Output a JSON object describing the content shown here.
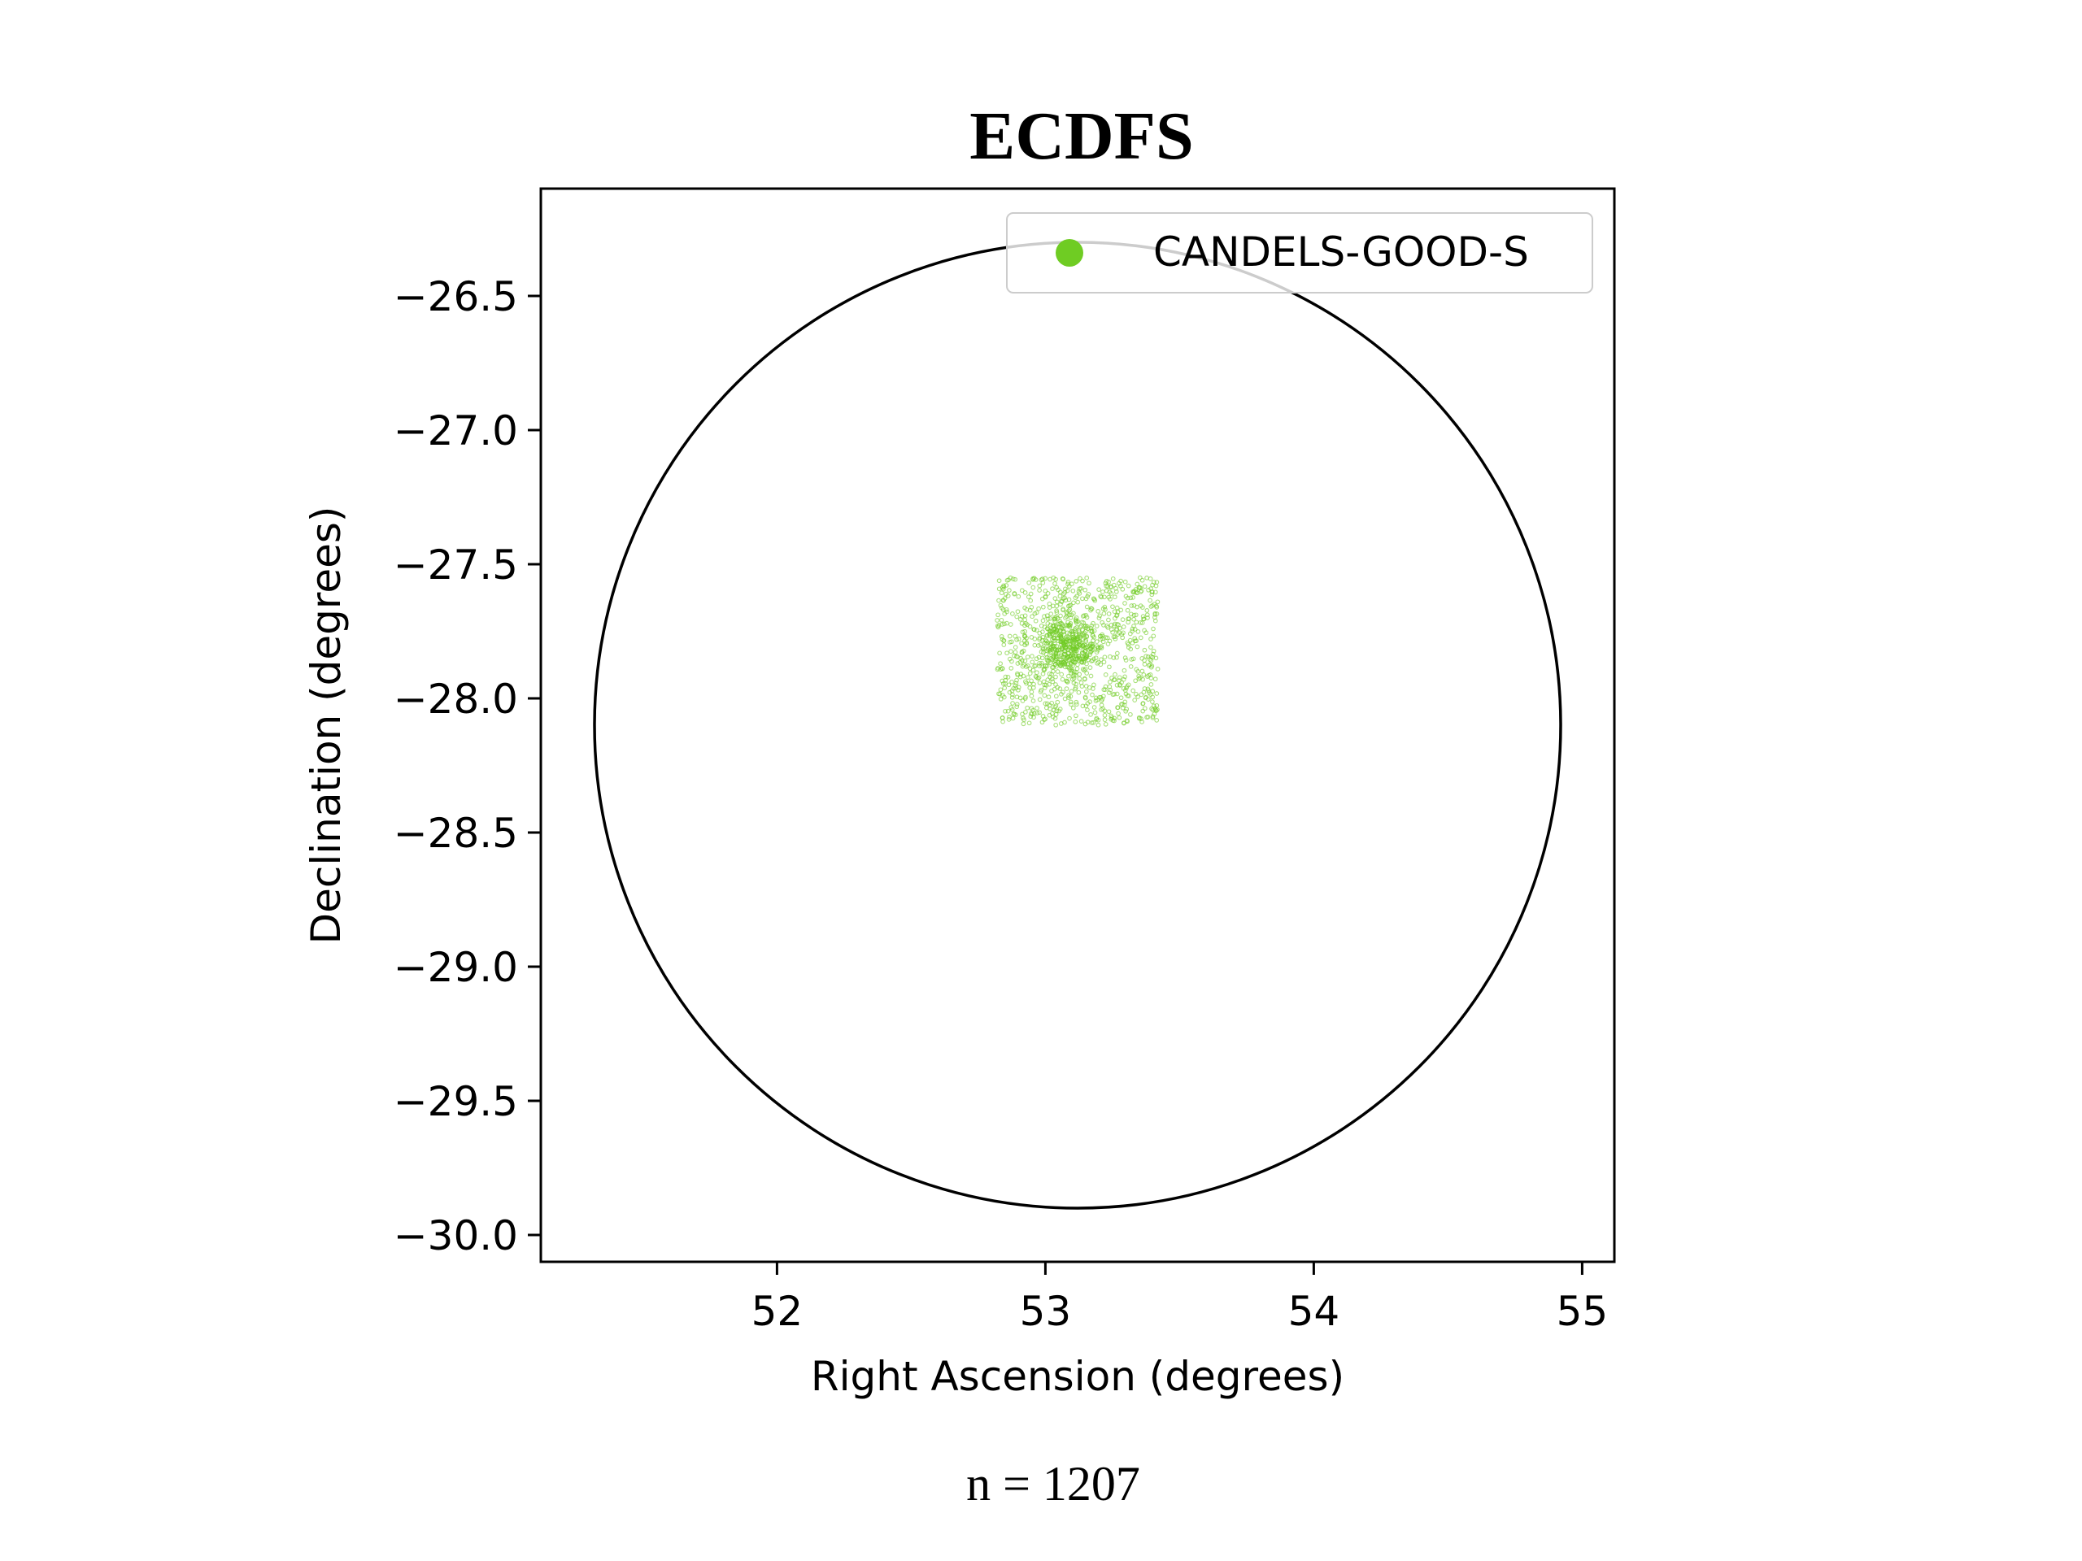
{
  "chart_data": {
    "type": "scatter",
    "title": "ECDFS",
    "xlabel": "Right Ascension (degrees)",
    "ylabel": "Declination (degrees)",
    "xlim": [
      51.12,
      55.12
    ],
    "ylim": [
      -30.1,
      -26.1
    ],
    "xticks": [
      52,
      53,
      54,
      55
    ],
    "xtick_labels": [
      "52",
      "53",
      "54",
      "55"
    ],
    "yticks": [
      -26.5,
      -27.0,
      -27.5,
      -28.0,
      -28.5,
      -29.0,
      -29.5,
      -30.0
    ],
    "ytick_labels": [
      "−26.5",
      "−27.0",
      "−27.5",
      "−28.0",
      "−28.5",
      "−29.0",
      "−29.5",
      "−30.0"
    ],
    "grid": false,
    "legend_position": "top-right",
    "series": [
      {
        "name": "CANDELS-GOOD-S",
        "color": "#6fcc23",
        "count": 1207,
        "ra_range": [
          52.82,
          53.42
        ],
        "dec_range": [
          -28.1,
          -27.55
        ],
        "dense_core_center": [
          53.08,
          -27.8
        ]
      }
    ],
    "circle": {
      "center_ra": 53.12,
      "center_dec": -28.1,
      "radius_deg": 1.8,
      "color": "#000000"
    },
    "footer": "n = 1207"
  }
}
